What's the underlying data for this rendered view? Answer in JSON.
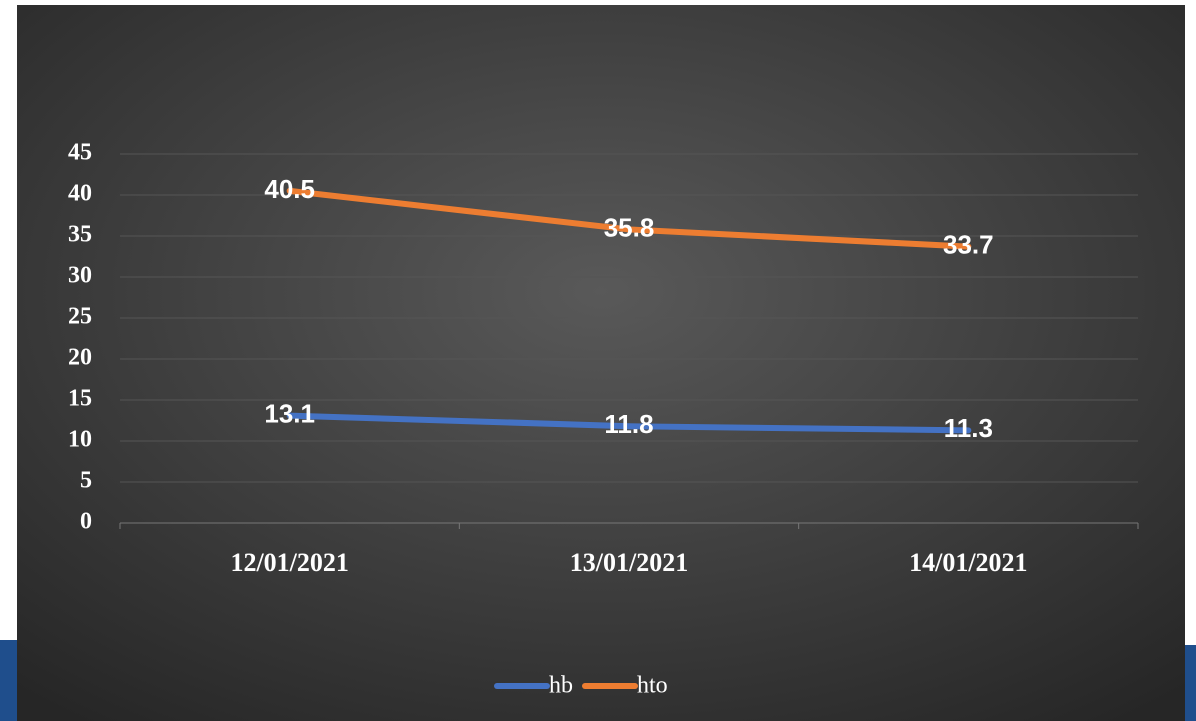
{
  "chart_data": {
    "type": "line",
    "categories": [
      "12/01/2021",
      "13/01/2021",
      "14/01/2021"
    ],
    "series": [
      {
        "name": "hb",
        "color": "#4472c4",
        "values": [
          13.1,
          11.8,
          11.3
        ]
      },
      {
        "name": "hto",
        "color": "#ed7d31",
        "values": [
          40.5,
          35.8,
          33.7
        ]
      }
    ],
    "ylim": [
      0,
      45
    ],
    "yticks": [
      0,
      5,
      10,
      15,
      20,
      25,
      30,
      35,
      40,
      45
    ],
    "grid": true,
    "legend": "bottom"
  }
}
